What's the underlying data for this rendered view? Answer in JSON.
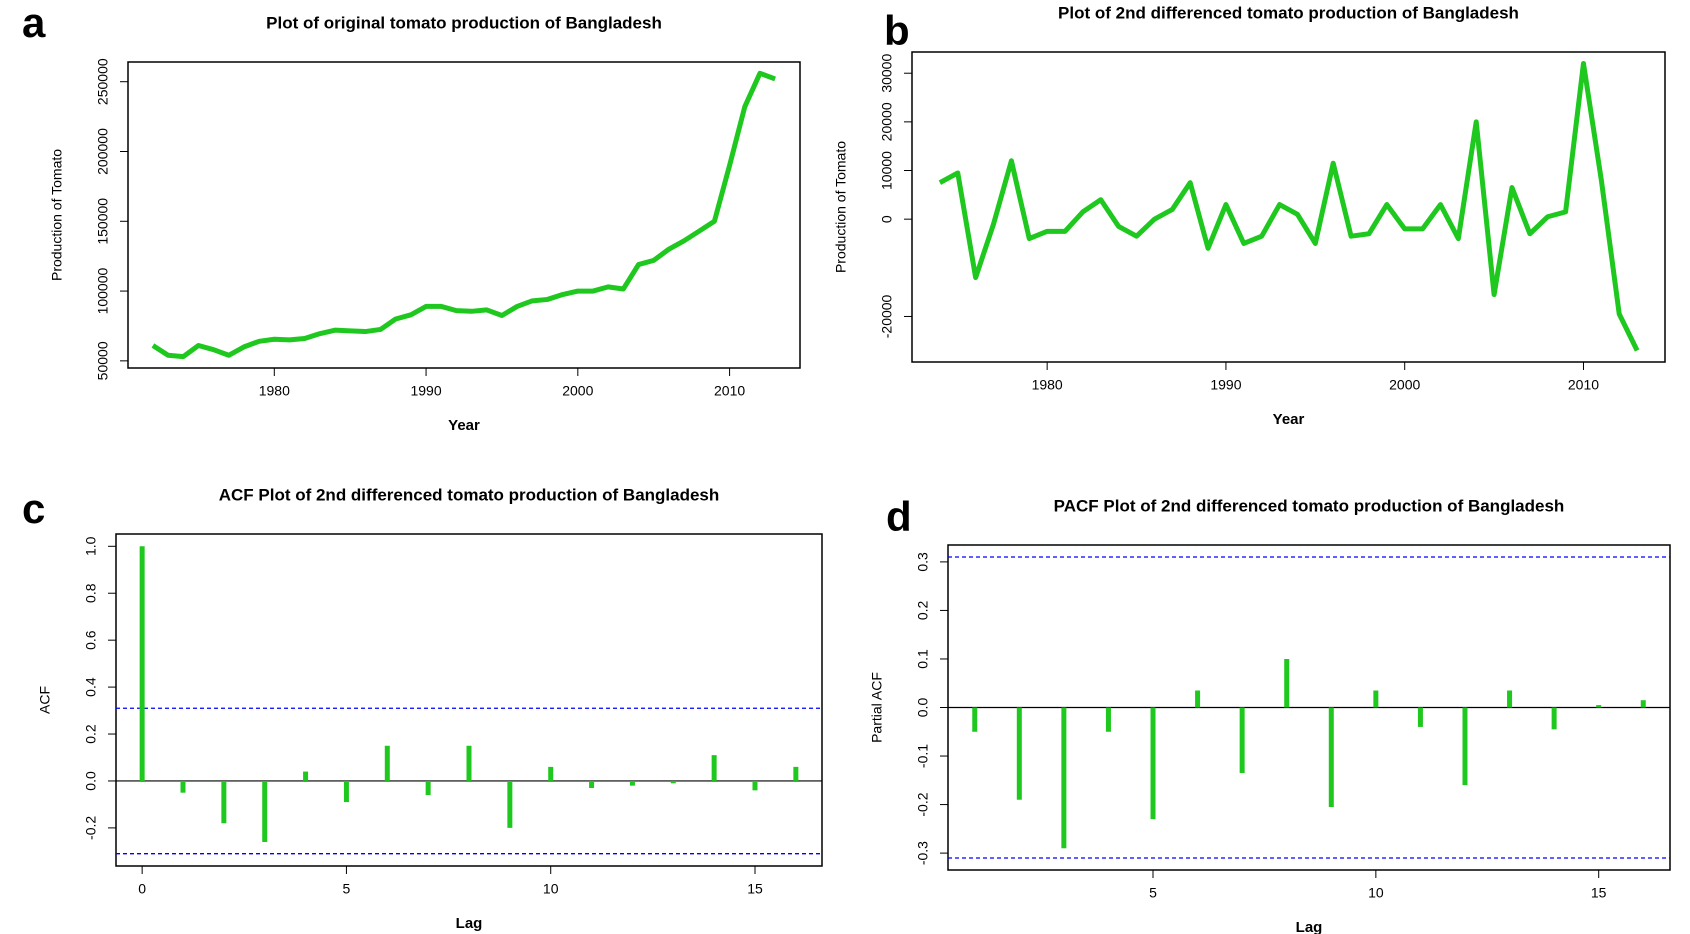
{
  "chart_data": [
    {
      "type": "line",
      "panel_label": "a",
      "title": "Plot of original tomato production of Bangladesh",
      "x_label": "Year",
      "y_label": "Production of Tomato",
      "color": "#1ec81e",
      "x": [
        1972,
        1973,
        1974,
        1975,
        1976,
        1977,
        1978,
        1979,
        1980,
        1981,
        1982,
        1983,
        1984,
        1985,
        1986,
        1987,
        1988,
        1989,
        1990,
        1991,
        1992,
        1993,
        1994,
        1995,
        1996,
        1997,
        1998,
        1999,
        2000,
        2001,
        2002,
        2003,
        2004,
        2005,
        2006,
        2007,
        2008,
        2009,
        2010,
        2011,
        2012,
        2013
      ],
      "values": [
        61000,
        54000,
        53000,
        61000,
        58000,
        54000,
        60000,
        64000,
        65500,
        65000,
        66000,
        69500,
        72000,
        71500,
        71000,
        72500,
        80000,
        83000,
        89000,
        89000,
        86000,
        85500,
        86500,
        82500,
        89000,
        93000,
        94000,
        97500,
        100000,
        100000,
        103000,
        101500,
        119000,
        122000,
        130000,
        136000,
        143000,
        150000,
        190000,
        232000,
        256000,
        252000
      ],
      "xlim": [
        1970.36,
        2014.64
      ],
      "ylim": [
        44880,
        264120
      ],
      "xticks": [
        1980,
        1990,
        2000,
        2010
      ],
      "yticks": [
        50000,
        100000,
        150000,
        200000,
        250000
      ]
    },
    {
      "type": "line",
      "panel_label": "b",
      "title": "Plot of 2nd differenced tomato production of Bangladesh",
      "x_label": "Year",
      "y_label": "Production of Tomato",
      "color": "#1ec81e",
      "x": [
        1974,
        1975,
        1976,
        1977,
        1978,
        1979,
        1980,
        1981,
        1982,
        1983,
        1984,
        1985,
        1986,
        1987,
        1988,
        1989,
        1990,
        1991,
        1992,
        1993,
        1994,
        1995,
        1996,
        1997,
        1998,
        1999,
        2000,
        2001,
        2002,
        2003,
        2004,
        2005,
        2006,
        2007,
        2008,
        2009,
        2010,
        2011,
        2012,
        2013
      ],
      "values": [
        7500,
        9500,
        -12000,
        -1000,
        12000,
        -4000,
        -2500,
        -2500,
        1500,
        4000,
        -1500,
        -3500,
        0,
        2000,
        7500,
        -6000,
        3000,
        -5000,
        -3500,
        3000,
        1000,
        -5000,
        11500,
        -3500,
        -3000,
        3000,
        -2000,
        -2000,
        3000,
        -4000,
        20000,
        -15500,
        6500,
        -3000,
        500,
        1500,
        32000,
        8000,
        -19500,
        -27000
      ],
      "xlim": [
        1972.44,
        2014.56
      ],
      "ylim": [
        -29360,
        34360
      ],
      "xticks": [
        1980,
        1990,
        2000,
        2010
      ],
      "yticks": [
        -20000,
        0,
        10000,
        20000,
        30000
      ]
    },
    {
      "type": "bar",
      "panel_label": "c",
      "title": "ACF Plot of 2nd differenced tomato production of Bangladesh",
      "x_label": "Lag",
      "y_label": "ACF",
      "color": "#1ec81e",
      "x": [
        0,
        1,
        2,
        3,
        4,
        5,
        6,
        7,
        8,
        9,
        10,
        11,
        12,
        13,
        14,
        15,
        16
      ],
      "values": [
        1.0,
        -0.05,
        -0.18,
        -0.26,
        0.04,
        -0.09,
        0.15,
        -0.06,
        0.15,
        -0.2,
        0.06,
        -0.03,
        -0.02,
        -0.01,
        0.11,
        -0.04,
        0.06
      ],
      "confidence_band": [
        -0.31,
        0.31
      ],
      "band_color": "#0000ff",
      "xlim": [
        -0.64,
        16.64
      ],
      "ylim": [
        -0.3624,
        1.0524
      ],
      "xticks": [
        0,
        5,
        10,
        15
      ],
      "yticks": [
        -0.2,
        {
          "value": 0,
          "label": "0.0"
        },
        0.2,
        0.4,
        0.6,
        0.8,
        {
          "value": 1,
          "label": "1.0"
        }
      ]
    },
    {
      "type": "bar",
      "panel_label": "d",
      "title": "PACF Plot of 2nd differenced tomato production of Bangladesh",
      "x_label": "Lag",
      "y_label": "Partial ACF",
      "color": "#1ec81e",
      "x": [
        1,
        2,
        3,
        4,
        5,
        6,
        7,
        8,
        9,
        10,
        11,
        12,
        13,
        14,
        15,
        16
      ],
      "values": [
        -0.05,
        -0.19,
        -0.29,
        -0.05,
        -0.23,
        0.035,
        -0.135,
        0.1,
        -0.205,
        0.035,
        -0.04,
        -0.16,
        0.035,
        -0.045,
        0.005,
        0.015
      ],
      "confidence_band": [
        -0.31,
        0.31
      ],
      "band_color": "#0000ff",
      "xlim": [
        0.4,
        16.6
      ],
      "ylim": [
        -0.3348,
        0.3348
      ],
      "xticks": [
        5,
        10,
        15
      ],
      "yticks": [
        -0.3,
        -0.2,
        -0.1,
        {
          "value": 0,
          "label": "0.0"
        },
        0.1,
        0.2,
        0.3
      ]
    }
  ]
}
